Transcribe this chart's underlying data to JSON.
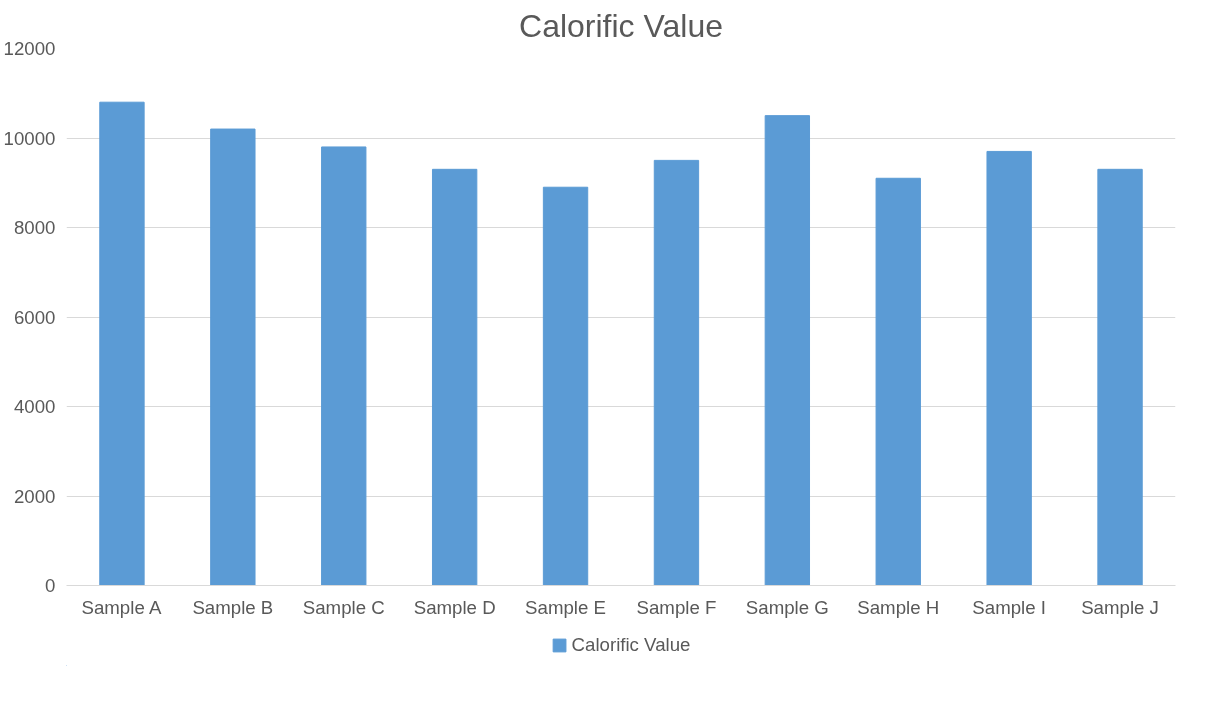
{
  "chart_data": {
    "type": "bar",
    "title": "Calorific Value",
    "categories": [
      "Sample A",
      "Sample B",
      "Sample C",
      "Sample D",
      "Sample E",
      "Sample F",
      "Sample G",
      "Sample H",
      "Sample I",
      "Sample J"
    ],
    "series": [
      {
        "name": "Calorific Value",
        "color": "#5b9bd5",
        "values": [
          10800,
          10200,
          9800,
          9300,
          8900,
          9500,
          10500,
          9100,
          9700,
          9300
        ]
      }
    ],
    "ylim": [
      0,
      12000
    ],
    "yticks": [
      0,
      2000,
      4000,
      6000,
      8000,
      10000,
      12000
    ],
    "grid": "y",
    "legend": "bottom"
  }
}
